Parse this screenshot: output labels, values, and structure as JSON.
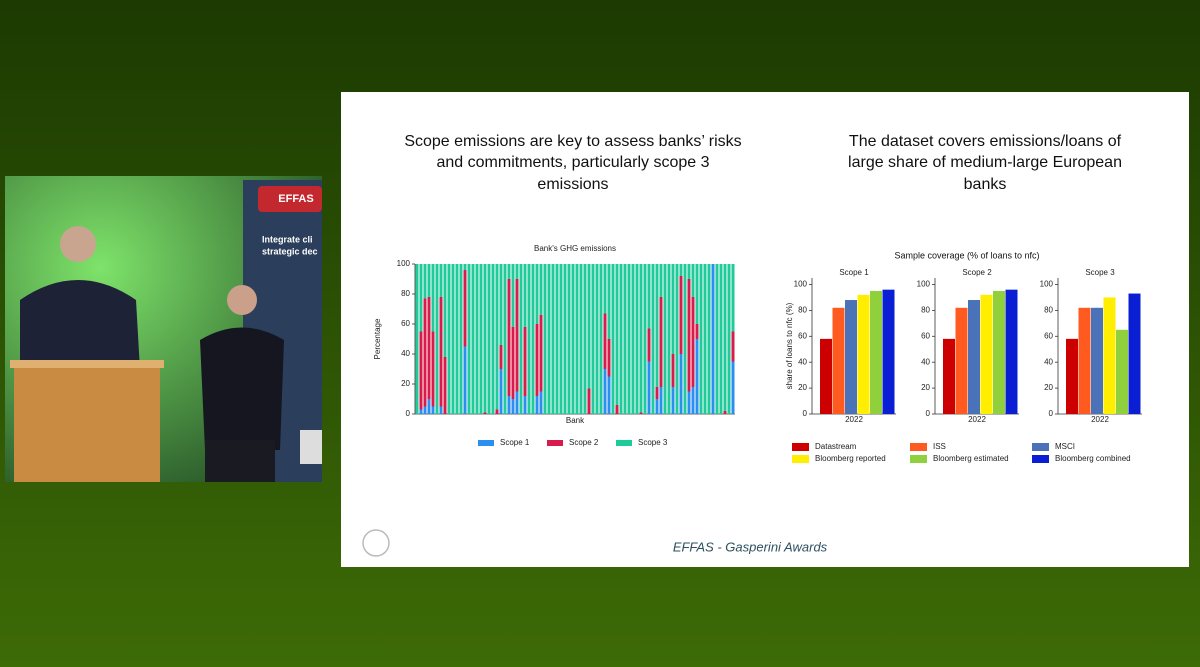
{
  "slide": {
    "left_title": [
      "Scope emissions are key to assess banks’ risks",
      "and commitments, particularly scope 3",
      "emissions"
    ],
    "right_title": [
      "The dataset covers emissions/loans of",
      "large share of medium-large European",
      "banks"
    ],
    "right_chart_title": "Sample coverage (% of loans to nfc)",
    "footer": "EFFAS - Gasperini Awards"
  },
  "video": {
    "banner_brand": "EFFAS",
    "banner_line1": "Integrate cli",
    "banner_line2": "strategic dec"
  },
  "chart_data": [
    {
      "type": "stacked_bar",
      "title": "Bank's GHG emissions",
      "x_label": "Bank",
      "y_label": "Percentage",
      "categories": [
        null,
        null,
        null,
        null,
        null,
        null,
        null,
        null,
        null,
        null,
        null,
        null,
        null,
        null,
        null,
        null,
        null,
        null,
        null,
        null,
        null,
        null,
        null,
        null,
        null,
        null,
        null,
        null,
        null,
        null,
        null,
        null,
        null,
        null,
        null,
        null,
        null,
        null,
        null,
        null,
        null,
        null,
        null,
        null,
        null,
        null,
        null,
        null,
        null,
        null,
        null,
        null,
        null,
        null,
        null,
        null,
        null,
        null,
        null,
        null,
        null,
        null,
        null,
        null,
        null,
        null,
        null,
        null,
        null,
        null,
        null,
        null,
        null,
        null,
        null,
        null,
        null,
        null,
        null,
        null
      ],
      "series": [
        {
          "name": "Scope 1",
          "color": "#2a8ff0",
          "values": [
            0,
            3,
            5,
            10,
            5,
            0,
            5,
            0,
            0,
            0,
            0,
            0,
            45,
            0,
            0,
            0,
            0,
            0,
            0,
            0,
            0,
            30,
            0,
            12,
            10,
            15,
            0,
            12,
            0,
            0,
            12,
            15,
            0,
            0,
            0,
            0,
            0,
            0,
            0,
            0,
            0,
            0,
            0,
            0,
            0,
            0,
            0,
            30,
            25,
            0,
            0,
            0,
            0,
            0,
            0,
            0,
            0,
            0,
            35,
            0,
            10,
            18,
            0,
            0,
            18,
            0,
            40,
            0,
            15,
            18,
            50,
            0,
            0,
            0,
            100,
            0,
            0,
            0,
            0,
            35
          ]
        },
        {
          "name": "Scope 2",
          "color": "#d81b4a",
          "values": [
            0,
            52,
            72,
            68,
            50,
            0,
            73,
            38,
            0,
            0,
            0,
            0,
            51,
            0,
            0,
            0,
            0,
            1,
            0,
            0,
            3,
            16,
            0,
            78,
            48,
            75,
            0,
            46,
            0,
            0,
            48,
            51,
            0,
            0,
            0,
            0,
            0,
            0,
            0,
            0,
            0,
            0,
            0,
            17,
            0,
            0,
            0,
            37,
            25,
            0,
            6,
            0,
            0,
            0,
            0,
            0,
            1,
            0,
            22,
            0,
            8,
            60,
            0,
            0,
            22,
            0,
            52,
            0,
            75,
            60,
            10,
            0,
            0,
            0,
            0,
            0,
            0,
            2,
            0,
            20
          ]
        },
        {
          "name": "Scope 3",
          "color": "#1fcb9a",
          "values": [
            100,
            45,
            23,
            22,
            45,
            100,
            22,
            62,
            100,
            100,
            100,
            100,
            4,
            100,
            100,
            100,
            100,
            99,
            100,
            100,
            97,
            54,
            100,
            10,
            42,
            10,
            100,
            42,
            100,
            100,
            40,
            34,
            100,
            100,
            100,
            100,
            100,
            100,
            100,
            100,
            100,
            100,
            100,
            83,
            100,
            100,
            100,
            33,
            50,
            100,
            94,
            100,
            100,
            100,
            100,
            100,
            99,
            100,
            43,
            100,
            82,
            22,
            100,
            100,
            60,
            100,
            8,
            100,
            10,
            22,
            40,
            100,
            100,
            100,
            0,
            100,
            100,
            98,
            100,
            45
          ]
        }
      ],
      "ylim": [
        0,
        100
      ],
      "yticks": [
        0,
        20,
        40,
        60,
        80,
        100
      ]
    },
    {
      "type": "bar",
      "title": "Scope 1",
      "y_label": "share of loans to nfc (%)",
      "categories": [
        "2022"
      ],
      "series": [
        {
          "name": "Datastream",
          "color": "#cc0000",
          "values": [
            58
          ]
        },
        {
          "name": "ISS",
          "color": "#ff5a1f",
          "values": [
            82
          ]
        },
        {
          "name": "MSCI",
          "color": "#4a72b8",
          "values": [
            88
          ]
        },
        {
          "name": "Bloomberg reported",
          "color": "#ffee00",
          "values": [
            92
          ]
        },
        {
          "name": "Bloomberg estimated",
          "color": "#8fd03c",
          "values": [
            95
          ]
        },
        {
          "name": "Bloomberg combined",
          "color": "#0a1fd4",
          "values": [
            96
          ]
        }
      ],
      "ylim": [
        0,
        105
      ],
      "yticks": [
        0,
        20,
        40,
        60,
        80,
        100
      ],
      "legend": "bottom"
    },
    {
      "type": "bar",
      "title": "Scope 2",
      "categories": [
        "2022"
      ],
      "series": [
        {
          "color": "#cc0000",
          "values": [
            58
          ]
        },
        {
          "color": "#ff5a1f",
          "values": [
            82
          ]
        },
        {
          "color": "#4a72b8",
          "values": [
            88
          ]
        },
        {
          "color": "#ffee00",
          "values": [
            92
          ]
        },
        {
          "color": "#8fd03c",
          "values": [
            95
          ]
        },
        {
          "color": "#0a1fd4",
          "values": [
            96
          ]
        }
      ],
      "ylim": [
        0,
        105
      ],
      "yticks": [
        0,
        20,
        40,
        60,
        80,
        100
      ]
    },
    {
      "type": "bar",
      "title": "Scope 3",
      "categories": [
        "2022"
      ],
      "series": [
        {
          "color": "#cc0000",
          "values": [
            58
          ]
        },
        {
          "color": "#ff5a1f",
          "values": [
            82
          ]
        },
        {
          "color": "#4a72b8",
          "values": [
            82
          ]
        },
        {
          "color": "#ffee00",
          "values": [
            90
          ]
        },
        {
          "color": "#8fd03c",
          "values": [
            65
          ]
        },
        {
          "color": "#0a1fd4",
          "values": [
            93
          ]
        }
      ],
      "ylim": [
        0,
        105
      ],
      "yticks": [
        0,
        20,
        40,
        60,
        80,
        100
      ]
    }
  ]
}
